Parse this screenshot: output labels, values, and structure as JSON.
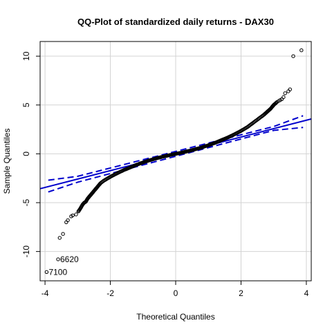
{
  "chart_data": {
    "type": "scatter",
    "title": "QQ-Plot of standardized daily returns - DAX30",
    "xlabel": "Theoretical Quantiles",
    "ylabel": "Sample Quantiles",
    "xlim": [
      -4.15,
      4.15
    ],
    "ylim": [
      -13.0,
      11.5
    ],
    "xticks": [
      -4,
      -2,
      0,
      2,
      4
    ],
    "yticks": [
      -10,
      -5,
      0,
      5,
      10
    ],
    "grid": true,
    "colors": {
      "points": "#000000",
      "reference_lines": "#0000cc",
      "grid": "#d3d3d3",
      "frame": "#000000"
    },
    "reference_line": {
      "slope": 0.86,
      "intercept": 0.0
    },
    "confidence_band": {
      "upper": [
        [
          -3.9,
          -2.7
        ],
        [
          -3.0,
          -2.3
        ],
        [
          3.0,
          2.8
        ],
        [
          3.9,
          3.9
        ]
      ],
      "lower": [
        [
          -3.9,
          -3.9
        ],
        [
          -3.0,
          -2.9
        ],
        [
          3.0,
          2.4
        ],
        [
          3.9,
          2.7
        ]
      ]
    },
    "points": {
      "x": [
        -3.95,
        -3.6,
        -3.55,
        -3.45,
        -3.35,
        -3.3,
        -3.2,
        -3.15,
        -3.05,
        -2.98,
        -2.92,
        -2.85,
        -2.8,
        -2.75,
        -2.7,
        -2.65,
        -2.6,
        -2.55,
        -2.5,
        -2.45,
        -2.4,
        -2.35,
        -2.3,
        -2.2,
        -2.1,
        -2.0,
        -1.8,
        -1.6,
        -1.4,
        -1.2,
        -1.0,
        -0.8,
        -0.6,
        -0.4,
        -0.2,
        0.0,
        0.2,
        0.4,
        0.6,
        0.8,
        1.0,
        1.2,
        1.4,
        1.6,
        1.8,
        2.0,
        2.1,
        2.2,
        2.3,
        2.4,
        2.5,
        2.6,
        2.7,
        2.8,
        2.9,
        3.0,
        3.1,
        3.15,
        3.2,
        3.25,
        3.3,
        3.35,
        3.45,
        3.5,
        3.6,
        3.85
      ],
      "y": [
        -12.1,
        -10.8,
        -8.6,
        -8.2,
        -7.0,
        -6.8,
        -6.4,
        -6.3,
        -6.2,
        -5.9,
        -5.6,
        -5.2,
        -5.0,
        -4.9,
        -4.6,
        -4.4,
        -4.2,
        -4.0,
        -3.8,
        -3.6,
        -3.4,
        -3.2,
        -3.0,
        -2.75,
        -2.55,
        -2.35,
        -2.0,
        -1.68,
        -1.4,
        -1.12,
        -0.88,
        -0.66,
        -0.47,
        -0.3,
        -0.14,
        0.0,
        0.14,
        0.3,
        0.47,
        0.66,
        0.88,
        1.12,
        1.4,
        1.68,
        2.0,
        2.35,
        2.55,
        2.75,
        3.0,
        3.25,
        3.5,
        3.75,
        4.0,
        4.3,
        4.6,
        5.0,
        5.3,
        5.4,
        5.5,
        5.6,
        5.8,
        6.2,
        6.4,
        6.6,
        10.0,
        10.6
      ]
    },
    "annotations": [
      {
        "text": "6620",
        "x": -3.6,
        "y": -10.8
      },
      {
        "text": "7100",
        "x": -3.95,
        "y": -12.1
      }
    ]
  }
}
